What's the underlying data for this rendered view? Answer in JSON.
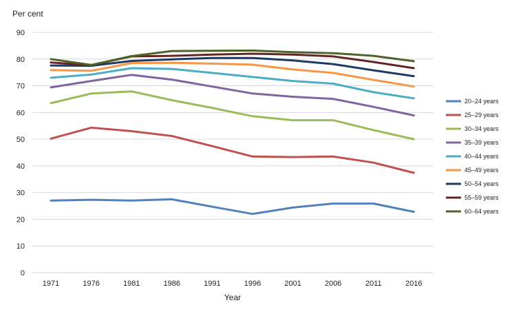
{
  "chart_data": {
    "type": "line",
    "ylabel": "Per cent",
    "xlabel": "Year",
    "ylim": [
      0,
      90
    ],
    "yticks": [
      0,
      10,
      20,
      30,
      40,
      50,
      60,
      70,
      80,
      90
    ],
    "x": [
      "1971",
      "1976",
      "1981",
      "1986",
      "1991",
      "1996",
      "2001",
      "2006",
      "2011",
      "2016"
    ],
    "grid": "horizontal",
    "legend_position": "right",
    "series": [
      {
        "name": "20–24 years",
        "color": "#4f81bd",
        "values": [
          27.0,
          27.3,
          27.0,
          27.5,
          24.7,
          22.0,
          24.4,
          25.9,
          25.9,
          22.8
        ]
      },
      {
        "name": "25–29 years",
        "color": "#c0504d",
        "values": [
          50.2,
          54.3,
          53.0,
          51.2,
          47.4,
          43.5,
          43.3,
          43.5,
          41.2,
          37.4
        ]
      },
      {
        "name": "30–34 years",
        "color": "#9bbb59",
        "values": [
          63.5,
          67.1,
          67.9,
          64.6,
          61.7,
          58.6,
          57.1,
          57.1,
          53.4,
          50.0
        ]
      },
      {
        "name": "35–39 years",
        "color": "#8064a2",
        "values": [
          69.4,
          71.8,
          74.1,
          72.3,
          69.7,
          67.1,
          65.9,
          65.1,
          62.1,
          58.9
        ]
      },
      {
        "name": "40–44 years",
        "color": "#4bacc6",
        "values": [
          73.0,
          74.2,
          76.6,
          76.3,
          74.8,
          73.3,
          71.8,
          70.8,
          67.6,
          65.3
        ]
      },
      {
        "name": "45–49 years",
        "color": "#f79646",
        "values": [
          75.9,
          75.6,
          78.5,
          78.6,
          78.3,
          77.9,
          76.1,
          74.8,
          72.2,
          69.7
        ]
      },
      {
        "name": "50–54 years",
        "color": "#1f3864",
        "values": [
          77.6,
          77.5,
          79.3,
          79.9,
          80.4,
          80.4,
          79.5,
          78.1,
          75.8,
          73.6
        ]
      },
      {
        "name": "55–59 years",
        "color": "#632523",
        "values": [
          78.7,
          77.7,
          81.0,
          81.2,
          81.7,
          82.0,
          81.7,
          81.0,
          78.9,
          76.6
        ]
      },
      {
        "name": "60–64 years",
        "color": "#4f6228",
        "values": [
          80.0,
          77.8,
          81.1,
          83.0,
          83.1,
          83.2,
          82.6,
          82.2,
          81.2,
          79.2
        ]
      }
    ]
  }
}
